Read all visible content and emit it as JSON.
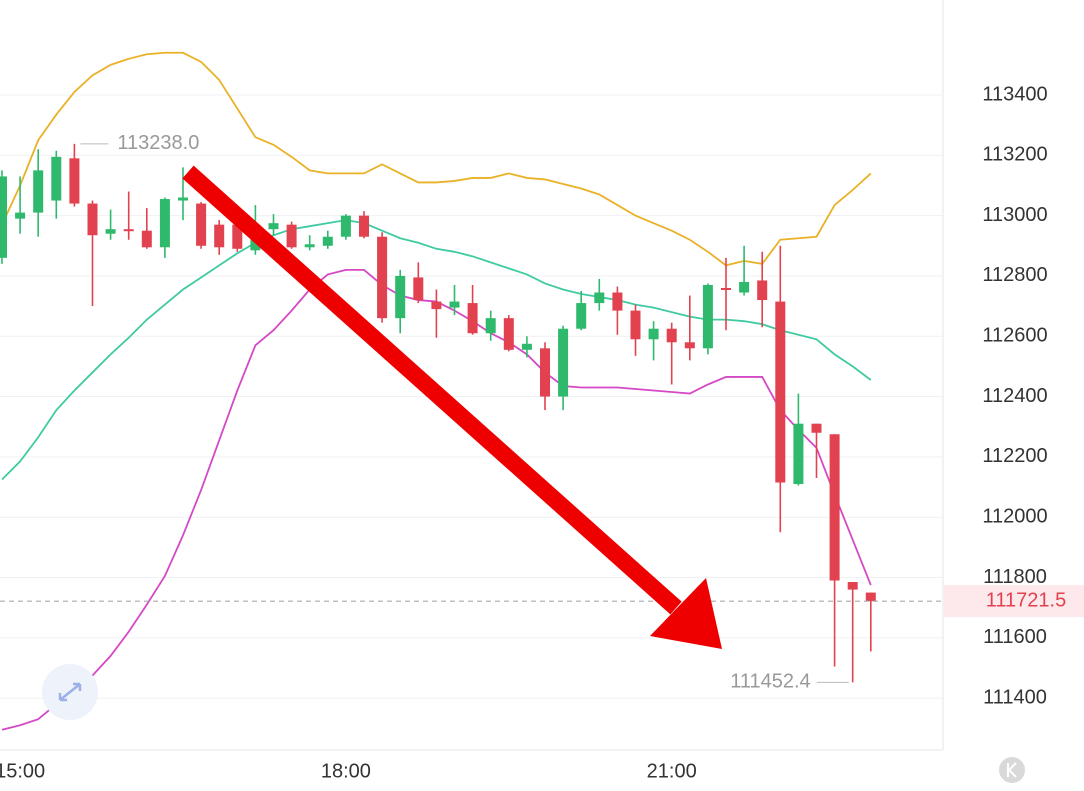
{
  "chart_data": {
    "type": "candlestick",
    "categories": [
      null,
      "15:00",
      null,
      null,
      null,
      null,
      null,
      null,
      null,
      null,
      null,
      null,
      null,
      null,
      null,
      null,
      null,
      null,
      null,
      "18:00",
      null,
      null,
      null,
      null,
      null,
      null,
      null,
      null,
      null,
      null,
      null,
      null,
      null,
      null,
      null,
      null,
      null,
      "21:00",
      null,
      null,
      null,
      null,
      null,
      null,
      null,
      null,
      null,
      null,
      null
    ],
    "open": [
      112860,
      112990,
      113010,
      113050,
      113190,
      113040,
      112940,
      112955,
      112950,
      112895,
      113050,
      113040,
      112970,
      112970,
      112885,
      112955,
      112970,
      112895,
      112900,
      112930,
      113000,
      112930,
      112660,
      112795,
      112715,
      112695,
      112710,
      112610,
      112660,
      112555,
      112560,
      112400,
      112625,
      112710,
      112745,
      112685,
      112590,
      112625,
      112580,
      112560,
      112760,
      112745,
      112785,
      112715,
      112110,
      112310,
      112275,
      111785,
      111750
    ],
    "high": [
      113150,
      113130,
      113220,
      113215,
      113238,
      113050,
      113020,
      113080,
      113025,
      113060,
      113160,
      113045,
      112985,
      113000,
      113035,
      113005,
      112980,
      112935,
      112950,
      113005,
      113015,
      112945,
      112820,
      112845,
      112755,
      112770,
      112770,
      112685,
      112670,
      112600,
      112580,
      112635,
      112750,
      112790,
      112765,
      112705,
      112650,
      112645,
      112735,
      112775,
      112860,
      112900,
      112880,
      112900,
      112410,
      112310,
      112275,
      111785,
      111750
    ],
    "low": [
      112840,
      112940,
      112930,
      112990,
      113030,
      112700,
      112920,
      112920,
      112890,
      112860,
      112985,
      112890,
      112870,
      112880,
      112870,
      112935,
      112890,
      112885,
      112890,
      112920,
      112925,
      112645,
      112610,
      112710,
      112595,
      112670,
      112605,
      112585,
      112550,
      112530,
      112355,
      112355,
      112620,
      112685,
      112605,
      112535,
      112520,
      112440,
      112520,
      112540,
      112620,
      112735,
      112630,
      111950,
      112105,
      112130,
      111505,
      111452.4,
      111555
    ],
    "close": [
      113130,
      113010,
      113150,
      113195,
      113040,
      112935,
      112955,
      112950,
      112895,
      113055,
      113060,
      112900,
      112895,
      112890,
      112970,
      112975,
      112895,
      112905,
      112930,
      113000,
      112930,
      112660,
      112800,
      112720,
      112690,
      112715,
      112610,
      112660,
      112555,
      112575,
      112400,
      112625,
      112710,
      112745,
      112685,
      112590,
      112625,
      112580,
      112560,
      112770,
      112755,
      112780,
      112720,
      112115,
      112310,
      112280,
      111790,
      111760,
      111721.5
    ],
    "colors": {
      "up": "#2fb96c",
      "down": "#e2414f"
    },
    "lines": [
      {
        "color": "#e9b126",
        "values": [
          112970,
          113100,
          113250,
          113335,
          113410,
          113465,
          113500,
          113520,
          113535,
          113540,
          113540,
          113510,
          113450,
          113355,
          113260,
          113235,
          113195,
          113150,
          113140,
          113140,
          113140,
          113170,
          113140,
          113110,
          113110,
          113115,
          113125,
          113125,
          113140,
          113125,
          113120,
          113105,
          113090,
          113070,
          113035,
          113000,
          112975,
          112950,
          112920,
          112880,
          112835,
          112850,
          112840,
          112920,
          112925,
          112930,
          113035,
          113085,
          113140
        ]
      },
      {
        "color": "#3fcaa2",
        "values": [
          112125,
          112185,
          112265,
          112355,
          112420,
          112480,
          112540,
          112595,
          112655,
          112705,
          112755,
          112795,
          112835,
          112875,
          112910,
          112935,
          112955,
          112965,
          112975,
          112985,
          112975,
          112950,
          112925,
          112910,
          112890,
          112880,
          112865,
          112845,
          112825,
          112805,
          112775,
          112755,
          112740,
          112730,
          112720,
          112705,
          112695,
          112680,
          112665,
          112655,
          112655,
          112650,
          112640,
          112620,
          112605,
          112590,
          112540,
          112500,
          112455
        ]
      },
      {
        "color": "#d548c6",
        "values": [
          111295,
          111310,
          111330,
          111380,
          111425,
          111475,
          111540,
          111620,
          111710,
          111805,
          111940,
          112090,
          112255,
          112420,
          112570,
          112620,
          112685,
          112755,
          112805,
          112820,
          112820,
          112770,
          112735,
          112720,
          112715,
          112685,
          112650,
          112610,
          112580,
          112540,
          112480,
          112435,
          112430,
          112430,
          112430,
          112425,
          112420,
          112415,
          112410,
          112440,
          112465,
          112465,
          112465,
          112355,
          112290,
          112230,
          112075,
          111925,
          111775
        ]
      }
    ],
    "ylim": [
      111228,
      113715
    ],
    "yticks": [
      111400,
      111600,
      111800,
      112000,
      112200,
      112400,
      112600,
      112800,
      113000,
      113200,
      113400
    ],
    "grid": true,
    "last_price": 111721.5,
    "high_marker": {
      "value": 113238,
      "label": "113238.0"
    },
    "low_marker": 111452.4
  }
}
